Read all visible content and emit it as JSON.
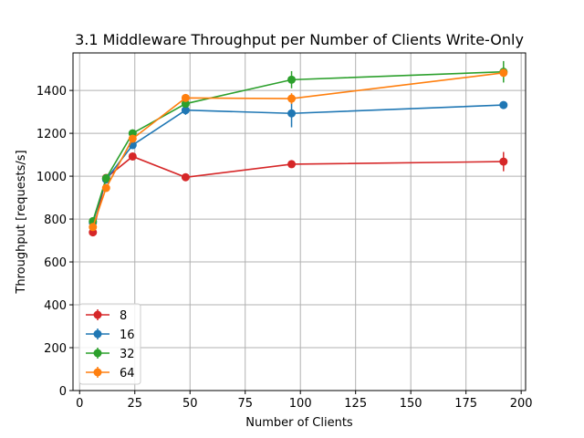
{
  "chart_data": {
    "type": "line",
    "title": "3.1 Middleware Throughput per Number of Clients Write-Only",
    "xlabel": "Number of Clients",
    "ylabel": "Throughput [requests/s]",
    "xlim": [
      -3,
      202
    ],
    "ylim": [
      0,
      1575
    ],
    "xticks": [
      0,
      25,
      50,
      75,
      100,
      125,
      150,
      175,
      200
    ],
    "yticks": [
      0,
      200,
      400,
      600,
      800,
      1000,
      1200,
      1400
    ],
    "grid": true,
    "legend_position": "lower-left",
    "x": [
      6,
      12,
      24,
      48,
      96,
      192
    ],
    "series": [
      {
        "name": "8",
        "color": "#d62728",
        "values": [
          738,
          992,
          1092,
          995,
          1056,
          1068
        ],
        "errors": [
          10,
          12,
          12,
          8,
          15,
          45
        ]
      },
      {
        "name": "16",
        "color": "#1f77b4",
        "values": [
          783,
          985,
          1145,
          1308,
          1293,
          1332
        ],
        "errors": [
          10,
          12,
          12,
          22,
          65,
          10
        ]
      },
      {
        "name": "32",
        "color": "#2ca02c",
        "values": [
          790,
          990,
          1200,
          1338,
          1450,
          1487
        ],
        "errors": [
          10,
          12,
          18,
          18,
          40,
          50
        ]
      },
      {
        "name": "64",
        "color": "#ff7f0e",
        "values": [
          763,
          945,
          1175,
          1365,
          1362,
          1482
        ],
        "errors": [
          10,
          12,
          15,
          12,
          25,
          15
        ]
      }
    ]
  }
}
